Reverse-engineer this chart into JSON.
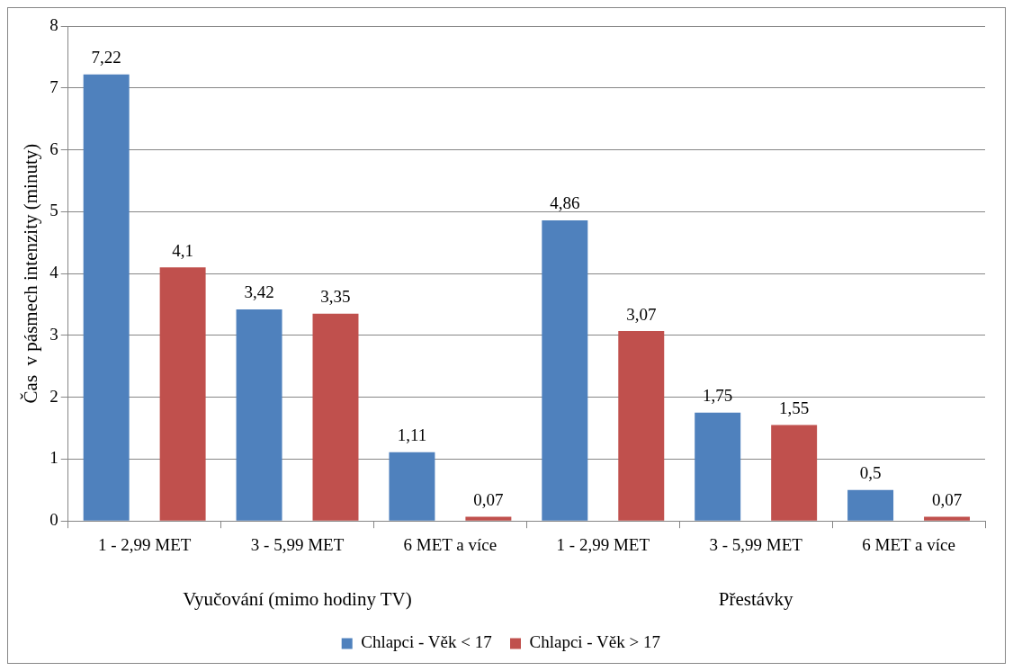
{
  "chart_data": {
    "type": "bar",
    "ylabel": "Čas  v pásmech intenzity (minuty)",
    "categories": [
      "1 - 2,99 MET",
      "3 - 5,99 MET",
      "6 MET a více",
      "1 - 2,99 MET",
      "3 - 5,99 MET",
      "6 MET a více"
    ],
    "series": [
      {
        "name": "Chlapci - Věk < 17",
        "color": "#4f81bd",
        "values": [
          7.22,
          3.42,
          1.11,
          4.86,
          1.75,
          0.5
        ],
        "value_labels": [
          "7,22",
          "3,42",
          "1,11",
          "4,86",
          "1,75",
          "0,5"
        ]
      },
      {
        "name": "Chlapci - Věk > 17",
        "color": "#c0504d",
        "values": [
          4.1,
          3.35,
          0.07,
          3.07,
          1.55,
          0.07
        ],
        "value_labels": [
          "4,1",
          "3,35",
          "0,07",
          "3,07",
          "1,55",
          "0,07"
        ]
      }
    ],
    "annotations": [
      "Vyučování (mimo hodiny TV)",
      "Přestávky"
    ],
    "ylim": [
      0,
      8
    ],
    "yticks": [
      0,
      1,
      2,
      3,
      4,
      5,
      6,
      7,
      8
    ],
    "grid": "y",
    "legend": "bottom"
  }
}
